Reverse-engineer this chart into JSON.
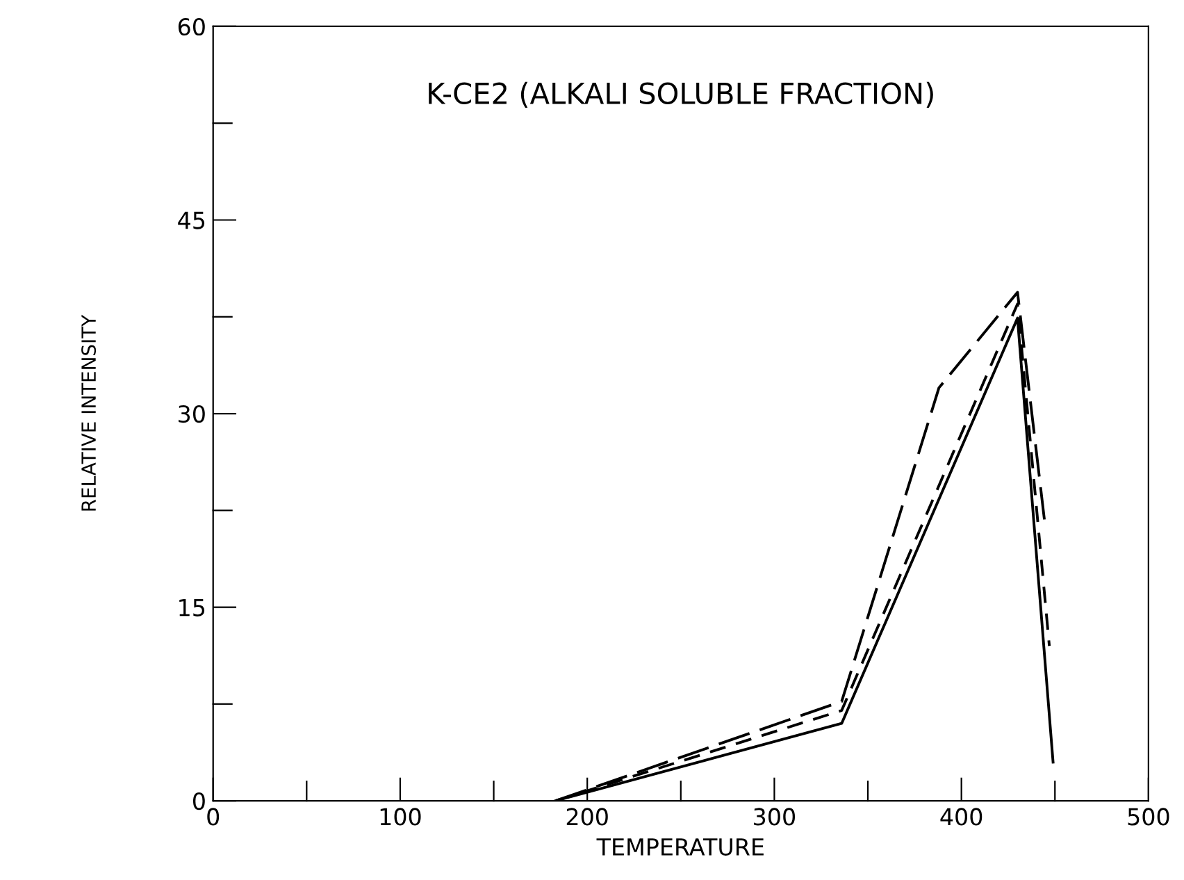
{
  "chart_data": {
    "type": "line",
    "title": "K-CE2 (ALKALI SOLUBLE FRACTION)",
    "xlabel": "TEMPERATURE",
    "ylabel": "RELATIVE INTENSITY",
    "xlim": [
      0,
      500
    ],
    "ylim": [
      0,
      60
    ],
    "xticks": [
      0,
      {
        "value": 50,
        "label": null
      },
      100,
      {
        "value": 150,
        "label": null
      },
      200,
      {
        "value": 250,
        "label": null
      },
      300,
      {
        "value": 350,
        "label": null
      },
      400,
      {
        "value": 450,
        "label": null
      },
      500
    ],
    "yticks": [
      0,
      {
        "value": 7.5,
        "label": null
      },
      15,
      {
        "value": 22.5,
        "label": null
      },
      30,
      {
        "value": 37.5,
        "label": null
      },
      45,
      {
        "value": 52.5,
        "label": null
      },
      60
    ],
    "grid": false,
    "legend": false,
    "marker": "none",
    "series": [
      {
        "color": "#000000",
        "line_style": "solid",
        "x": [
          183,
          336,
          430,
          449
        ],
        "values": [
          0,
          6,
          37.4,
          3
        ]
      },
      {
        "color": "#000000",
        "line_style": "dashed",
        "x": [
          183,
          336,
          430,
          447
        ],
        "values": [
          0,
          7,
          38.5,
          12
        ]
      },
      {
        "color": "#000000",
        "line_style": "dashed",
        "x": [
          183,
          336,
          388,
          430,
          445
        ],
        "values": [
          0,
          7.7,
          32,
          39.4,
          21
        ]
      }
    ]
  }
}
